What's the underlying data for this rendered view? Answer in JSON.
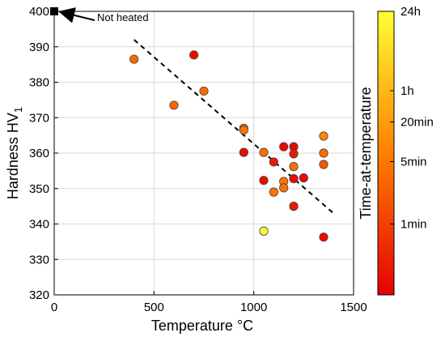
{
  "chart_data": {
    "type": "scatter",
    "xlabel": "Temperature °C",
    "ylabel_main": "Hardness HV",
    "ylabel_sub": "1",
    "xlim": [
      0,
      1500
    ],
    "ylim": [
      320,
      400
    ],
    "x_ticks": [
      0,
      500,
      1000,
      1500
    ],
    "y_ticks": [
      320,
      330,
      340,
      350,
      360,
      370,
      380,
      390,
      400
    ],
    "grid": true,
    "colorbar": {
      "label": "Time-at-temperature",
      "ticks": [
        {
          "label": "24h",
          "position": 1.0
        },
        {
          "label": "1h",
          "position": 0.72
        },
        {
          "label": "20min",
          "position": 0.61
        },
        {
          "label": "5min",
          "position": 0.47
        },
        {
          "label": "1min",
          "position": 0.25
        }
      ],
      "colors": [
        "#e60000",
        "#ff7a00",
        "#ffff33"
      ]
    },
    "annotation": {
      "text": "Not heated",
      "x": 0,
      "y": 400
    },
    "not_heated_point": {
      "x": 0,
      "y": 400
    },
    "trend_line": {
      "x1": 400,
      "y1": 392,
      "x2": 1400,
      "y2": 343
    },
    "points": [
      {
        "x": 400,
        "y": 386.5,
        "c": 0.42
      },
      {
        "x": 600,
        "y": 373.5,
        "c": 0.42
      },
      {
        "x": 700,
        "y": 387.7,
        "c": 0.05
      },
      {
        "x": 750,
        "y": 377.5,
        "c": 0.42
      },
      {
        "x": 950,
        "y": 367.0,
        "c": 0.38
      },
      {
        "x": 950,
        "y": 366.5,
        "c": 0.48
      },
      {
        "x": 950,
        "y": 360.2,
        "c": 0.05
      },
      {
        "x": 1050,
        "y": 360.2,
        "c": 0.45
      },
      {
        "x": 1050,
        "y": 352.3,
        "c": 0.05
      },
      {
        "x": 1050,
        "y": 338.0,
        "c": 0.97
      },
      {
        "x": 1100,
        "y": 357.5,
        "c": 0.1
      },
      {
        "x": 1100,
        "y": 349.0,
        "c": 0.48
      },
      {
        "x": 1150,
        "y": 361.8,
        "c": 0.05
      },
      {
        "x": 1150,
        "y": 352.0,
        "c": 0.48
      },
      {
        "x": 1150,
        "y": 350.2,
        "c": 0.45
      },
      {
        "x": 1200,
        "y": 361.8,
        "c": 0.05
      },
      {
        "x": 1200,
        "y": 359.8,
        "c": 0.1
      },
      {
        "x": 1200,
        "y": 356.2,
        "c": 0.45
      },
      {
        "x": 1200,
        "y": 352.8,
        "c": 0.05
      },
      {
        "x": 1200,
        "y": 345.0,
        "c": 0.1
      },
      {
        "x": 1250,
        "y": 353.0,
        "c": 0.05
      },
      {
        "x": 1350,
        "y": 364.8,
        "c": 0.55
      },
      {
        "x": 1350,
        "y": 360.0,
        "c": 0.45
      },
      {
        "x": 1350,
        "y": 356.8,
        "c": 0.35
      },
      {
        "x": 1350,
        "y": 336.3,
        "c": 0.05
      }
    ]
  }
}
